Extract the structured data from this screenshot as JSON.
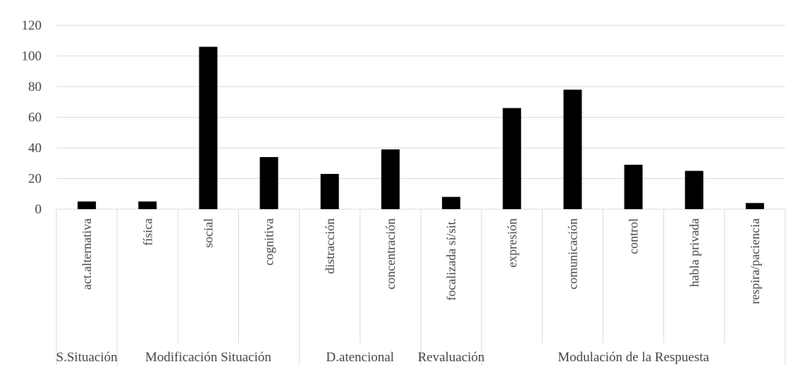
{
  "chart_data": {
    "type": "bar",
    "title": "",
    "xlabel": "",
    "ylabel": "",
    "ylim": [
      0,
      120
    ],
    "yticks": [
      0,
      20,
      40,
      60,
      80,
      100,
      120
    ],
    "grid": true,
    "legend": "none",
    "bar_color": "#000000",
    "categories": [
      "act.alternativa",
      "física",
      "social",
      "cognitiva",
      "distracción",
      "concentración",
      "focalizada sí/sit.",
      "expresión",
      "comunicación",
      "control",
      "habla privada",
      "respira/paciencia"
    ],
    "values": [
      5,
      5,
      106,
      34,
      23,
      39,
      8,
      66,
      78,
      29,
      25,
      4
    ],
    "groups": [
      {
        "label": "S.Situación",
        "categories": [
          "act.alternativa"
        ]
      },
      {
        "label": "Modificación Situación",
        "categories": [
          "física",
          "social",
          "cognitiva"
        ]
      },
      {
        "label": "D.atencional",
        "categories": [
          "distracción",
          "concentración"
        ]
      },
      {
        "label": "Revaluación",
        "categories": [
          "focalizada sí/sit."
        ]
      },
      {
        "label": "Modulación de la Respuesta",
        "categories": [
          "expresión",
          "comunicación",
          "control",
          "habla privada",
          "respira/paciencia"
        ]
      }
    ]
  }
}
